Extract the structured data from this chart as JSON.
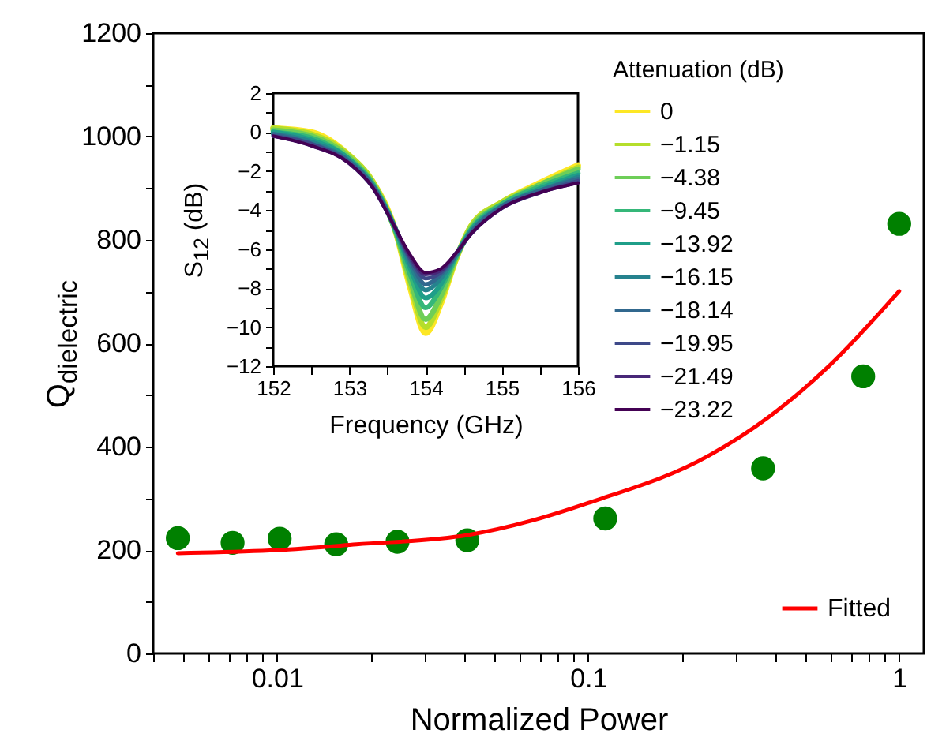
{
  "chart_data": [
    {
      "type": "scatter",
      "xlabel": "Normalized Power",
      "ylabel": "Q$_{dielectric}$",
      "log": "x",
      "legend": "bottom right",
      "xlim": [
        0.004,
        1.2
      ],
      "xticks": [
        {
          "value": 0.004,
          "label": null
        },
        {
          "value": 0.005,
          "label": null
        },
        {
          "value": 0.006,
          "label": null
        },
        {
          "value": 0.007,
          "label": null
        },
        {
          "value": 0.008,
          "label": null
        },
        {
          "value": 0.009,
          "label": null
        },
        0.01,
        {
          "value": 0.02,
          "label": null
        },
        {
          "value": 0.03,
          "label": null
        },
        {
          "value": 0.04,
          "label": null
        },
        {
          "value": 0.05,
          "label": null
        },
        {
          "value": 0.06,
          "label": null
        },
        {
          "value": 0.07,
          "label": null
        },
        {
          "value": 0.08,
          "label": null
        },
        {
          "value": 0.09,
          "label": null
        },
        0.1,
        {
          "value": 0.2,
          "label": null
        },
        {
          "value": 0.3,
          "label": null
        },
        {
          "value": 0.4,
          "label": null
        },
        {
          "value": 0.5,
          "label": null
        },
        {
          "value": 0.6,
          "label": null
        },
        {
          "value": 0.7,
          "label": null
        },
        {
          "value": 0.8,
          "label": null
        },
        {
          "value": 0.9,
          "label": null
        },
        1
      ],
      "ylim": [
        0,
        1200
      ],
      "yticks": [
        0,
        {
          "value": 100,
          "label": null
        },
        200,
        {
          "value": 300,
          "label": null
        },
        400,
        {
          "value": 500,
          "label": null
        },
        600,
        {
          "value": 700,
          "label": null
        },
        800,
        {
          "value": 900,
          "label": null
        },
        1000,
        {
          "value": 1100,
          "label": null
        },
        1200
      ],
      "series": [
        {
          "marker": "circle",
          "color": "#008000",
          "x": [
            0.0048,
            0.0072,
            0.0102,
            0.0155,
            0.0244,
            0.0409,
            0.1135,
            0.365,
            0.766,
            1.0
          ],
          "values": [
            223,
            214,
            222,
            211,
            216,
            219,
            261,
            358,
            536,
            831
          ]
        },
        {
          "type": "line",
          "name": "Fitted",
          "color": "#ff0000",
          "x": [
            0.0048,
            0.01,
            0.018,
            0.041,
            0.066,
            0.1,
            0.245,
            0.38,
            0.59,
            1.0
          ],
          "values": [
            194,
            200,
            211,
            229,
            257,
            291,
            383,
            457,
            554,
            701
          ]
        }
      ]
    },
    {
      "type": "line",
      "xlabel": "Frequency (GHz)",
      "ylabel": "S$_{12}$ (dB)",
      "legend_title": "Attenuation (dB)",
      "legend": "right",
      "x": [
        152,
        152.5,
        153,
        153.3,
        153.6,
        153.8,
        154,
        154.2,
        154.4,
        154.6,
        155,
        155.5,
        156
      ],
      "xlim": [
        152,
        156
      ],
      "xticks": [
        152,
        {
          "value": 152.5,
          "label": null
        },
        153,
        {
          "value": 153.5,
          "label": null
        },
        154,
        {
          "value": 154.5,
          "label": null
        },
        155,
        {
          "value": 155.5,
          "label": null
        },
        156
      ],
      "ylim": [
        -12,
        2
      ],
      "yticks": [
        -12,
        {
          "value": -11,
          "label": null
        },
        -10,
        {
          "value": -9,
          "label": null
        },
        -8,
        {
          "value": -7,
          "label": null
        },
        -6,
        {
          "value": -5,
          "label": null
        },
        -4,
        {
          "value": -3,
          "label": null
        },
        -2,
        {
          "value": -1,
          "label": null
        },
        0,
        {
          "value": 1,
          "label": null
        },
        2
      ],
      "series": [
        {
          "name": "0",
          "color": "#fde725",
          "values": [
            0.2,
            0,
            -1.2,
            -2.5,
            -5,
            -8,
            -10.3,
            -8.8,
            -6.5,
            -4.8,
            -3.6,
            -2.6,
            -1.7
          ]
        },
        {
          "name": "−1.15",
          "color": "#b5de2b",
          "values": [
            0.2,
            -0.1,
            -1.2,
            -2.5,
            -5,
            -7.8,
            -10.0,
            -8.6,
            -6.5,
            -4.8,
            -3.6,
            -2.7,
            -1.8
          ]
        },
        {
          "name": "−4.38",
          "color": "#6ece58",
          "values": [
            0.1,
            -0.2,
            -1.3,
            -2.6,
            -5,
            -7.6,
            -9.6,
            -8.4,
            -6.4,
            -4.9,
            -3.7,
            -2.7,
            -1.9
          ]
        },
        {
          "name": "−9.45",
          "color": "#35b779",
          "values": [
            0.0,
            -0.3,
            -1.4,
            -2.6,
            -5,
            -7.3,
            -9.0,
            -8.0,
            -6.4,
            -5.0,
            -3.7,
            -2.8,
            -2.1
          ]
        },
        {
          "name": "−13.92",
          "color": "#1f9e89",
          "values": [
            0.0,
            -0.4,
            -1.4,
            -2.7,
            -4.9,
            -7.0,
            -8.5,
            -7.8,
            -6.3,
            -5.0,
            -3.8,
            -2.9,
            -2.2
          ]
        },
        {
          "name": "−16.15",
          "color": "#26828e",
          "values": [
            -0.1,
            -0.5,
            -1.5,
            -2.7,
            -4.9,
            -6.8,
            -8.1,
            -7.5,
            -6.3,
            -5.1,
            -3.8,
            -3.0,
            -2.3
          ]
        },
        {
          "name": "−18.14",
          "color": "#31688e",
          "values": [
            -0.1,
            -0.6,
            -1.5,
            -2.7,
            -4.9,
            -6.6,
            -7.8,
            -7.3,
            -6.3,
            -5.1,
            -3.8,
            -3.0,
            -2.4
          ]
        },
        {
          "name": "−19.95",
          "color": "#3e4989",
          "values": [
            -0.2,
            -0.6,
            -1.6,
            -2.8,
            -4.9,
            -6.5,
            -7.5,
            -7.2,
            -6.2,
            -5.2,
            -3.9,
            -3.1,
            -2.5
          ]
        },
        {
          "name": "−21.49",
          "color": "#482878",
          "values": [
            -0.2,
            -0.7,
            -1.6,
            -2.8,
            -4.9,
            -6.4,
            -7.3,
            -7.1,
            -6.2,
            -5.2,
            -3.9,
            -3.1,
            -2.6
          ]
        },
        {
          "name": "−23.22",
          "color": "#440154",
          "values": [
            -0.2,
            -0.7,
            -1.6,
            -2.8,
            -4.9,
            -6.3,
            -7.2,
            -7.0,
            -6.2,
            -5.2,
            -3.9,
            -3.1,
            -2.6
          ]
        }
      ]
    }
  ]
}
